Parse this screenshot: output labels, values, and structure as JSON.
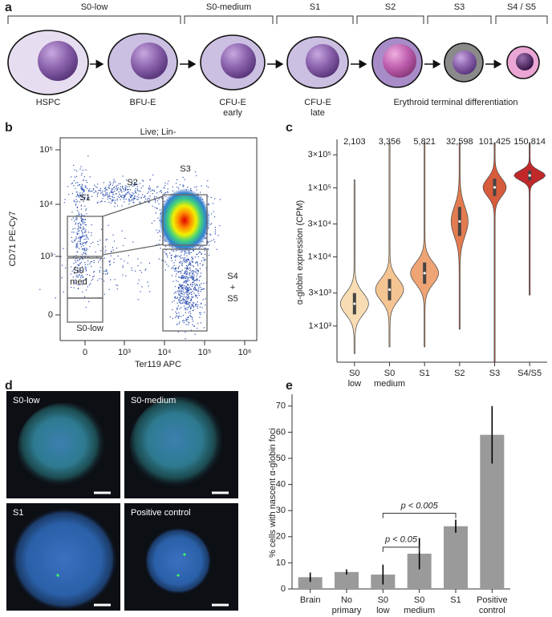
{
  "panel_labels": [
    "a",
    "b",
    "c",
    "d",
    "e"
  ],
  "stage_diagram": {
    "stages": [
      "S0-low",
      "S0-medium",
      "S1",
      "S2",
      "S3",
      "S4 / S5"
    ],
    "cells": [
      [
        "HSPC"
      ],
      [
        "BFU-E"
      ],
      [
        "CFU-E",
        "early"
      ],
      [
        "CFU-E",
        "late"
      ]
    ],
    "terminal_label": "Erythroid terminal differentiation"
  },
  "flow_plot": {
    "title": "Live; Lin-",
    "xlabel": "Ter119 APC",
    "ylabel": "CD71 PE-Cy7",
    "xticks": [
      "0",
      "10³",
      "10⁴",
      "10⁵",
      "10⁶"
    ],
    "yticks": [
      "0",
      "10³",
      "10⁴",
      "10⁵"
    ],
    "gates": [
      [
        "S1"
      ],
      [
        "S2"
      ],
      [
        "S3"
      ],
      [
        "S0",
        "med"
      ],
      [
        "S4",
        "+",
        "S5"
      ],
      [
        "S0-low"
      ]
    ]
  },
  "micrographs": [
    "S0-low",
    "S0-medium",
    "S1",
    "Positive control"
  ],
  "chart_data": [
    {
      "type": "violin",
      "ylabel": "α-globin expression (CPM)",
      "log_scale": true,
      "categories": [
        [
          "S0",
          "low"
        ],
        [
          "S0",
          "medium"
        ],
        [
          "S1"
        ],
        [
          "S2"
        ],
        [
          "S3"
        ],
        [
          "S4/S5"
        ]
      ],
      "values": [
        2103,
        3356,
        5821,
        32598,
        101425,
        150814
      ],
      "value_labels": [
        "2,103",
        "3,356",
        "5,821",
        "32,598",
        "101,425",
        "150,814"
      ],
      "min": [
        400,
        500,
        500,
        900,
        300,
        2800
      ],
      "max": [
        130000,
        450000,
        450000,
        450000,
        450000,
        450000
      ],
      "colors": [
        "#f8dcb4",
        "#f4c492",
        "#eea474",
        "#e27c50",
        "#d65c3c",
        "#c0282a"
      ],
      "ylim": [
        300,
        450000
      ],
      "yticks": [
        {
          "value": 1000,
          "label": "1×10³"
        },
        {
          "value": 3000,
          "label": "3×10³"
        },
        {
          "value": 10000,
          "label": "1×10⁴"
        },
        {
          "value": 30000,
          "label": "3×10⁴"
        },
        {
          "value": 100000,
          "label": "1×10⁵"
        },
        {
          "value": 300000,
          "label": "3×10⁵"
        }
      ]
    },
    {
      "type": "bar",
      "ylabel": "% cells with nascent α-globin foci",
      "categories": [
        [
          "Brain"
        ],
        [
          "No",
          "primary"
        ],
        [
          "S0",
          "low"
        ],
        [
          "S0",
          "medium"
        ],
        [
          "S1"
        ],
        [
          "Positive",
          "control"
        ]
      ],
      "values": [
        4.5,
        6.5,
        5.5,
        13.5,
        24,
        59
      ],
      "errors": [
        1.8,
        1,
        3.8,
        6,
        2.5,
        11
      ],
      "color": "#9a9a9a",
      "ylim": [
        0,
        73
      ],
      "yticks": [
        0,
        10,
        20,
        30,
        40,
        50,
        60,
        70
      ],
      "annotations": [
        {
          "text": "p < 0.05",
          "from": 2,
          "to": 3,
          "y": 16
        },
        {
          "text": "p < 0.005",
          "from": 2,
          "to": 4,
          "y": 29
        }
      ]
    }
  ]
}
